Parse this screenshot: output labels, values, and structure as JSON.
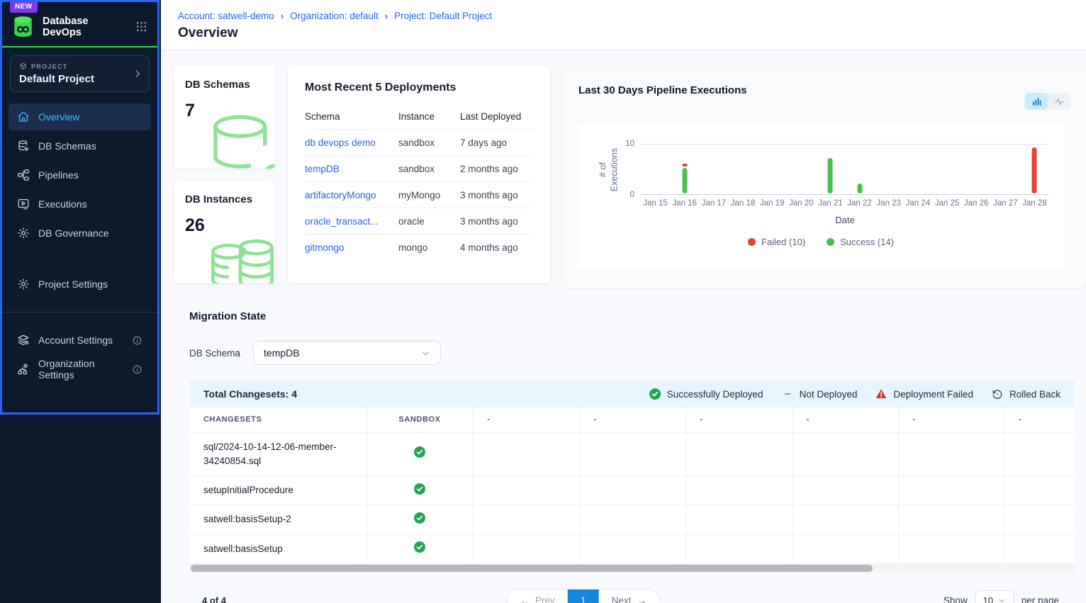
{
  "colors": {
    "brand_green": "#3ed24b",
    "link_blue": "#2563eb",
    "active_nav": "#3cbdf6",
    "success_green": "#23a455",
    "failed_red": "#dc2f26",
    "pagination_blue": "#1486dc"
  },
  "sidebar": {
    "new_badge": "NEW",
    "app_title": "Database DevOps",
    "project_label": "PROJECT",
    "project_name": "Default Project",
    "nav": [
      {
        "label": "Overview",
        "icon": "home-icon",
        "active": true
      },
      {
        "label": "DB Schemas",
        "icon": "database-icon",
        "active": false
      },
      {
        "label": "Pipelines",
        "icon": "pipelines-icon",
        "active": false
      },
      {
        "label": "Executions",
        "icon": "executions-icon",
        "active": false
      },
      {
        "label": "DB Governance",
        "icon": "gear-icon",
        "active": false
      }
    ],
    "settings_nav": [
      {
        "label": "Project Settings",
        "icon": "gear-icon",
        "info": false
      }
    ],
    "account_nav": [
      {
        "label": "Account Settings",
        "icon": "account-layers-icon",
        "info": true
      },
      {
        "label": "Organization Settings",
        "icon": "org-icon",
        "info": true
      }
    ]
  },
  "breadcrumb": {
    "items": [
      "Account: satwell-demo",
      "Organization: default",
      "Project: Default Project"
    ]
  },
  "page_title": "Overview",
  "stats": [
    {
      "label": "DB Schemas",
      "value": "7",
      "icon": "db-single-icon"
    },
    {
      "label": "DB Instances",
      "value": "26",
      "icon": "db-stack-icon"
    }
  ],
  "deployments": {
    "title": "Most Recent 5 Deployments",
    "columns": [
      "Schema",
      "Instance",
      "Last Deployed"
    ],
    "rows": [
      [
        "db devops demo",
        "sandbox",
        "7 days ago"
      ],
      [
        "tempDB",
        "sandbox",
        "2 months ago"
      ],
      [
        "artifactoryMongo",
        "myMongo",
        "3 months ago"
      ],
      [
        "oracle_transact...",
        "oracle",
        "3 months ago"
      ],
      [
        "gitmongo",
        "mongo",
        "4 months ago"
      ]
    ]
  },
  "chart_data": {
    "type": "bar",
    "title": "Last 30 Days Pipeline Executions",
    "xlabel": "Date",
    "ylabel": "# of Executions",
    "ylim": [
      0,
      10
    ],
    "grid": false,
    "legend_position": "bottom",
    "categories": [
      "Jan 15",
      "Jan 16",
      "Jan 17",
      "Jan 18",
      "Jan 19",
      "Jan 20",
      "Jan 21",
      "Jan 22",
      "Jan 23",
      "Jan 24",
      "Jan 25",
      "Jan 26",
      "Jan 27",
      "Jan 28"
    ],
    "series": [
      {
        "name": "Success",
        "color": "#4ac04e",
        "values": [
          0,
          5,
          0,
          0,
          0,
          0,
          7,
          2,
          0,
          0,
          0,
          0,
          0,
          0
        ]
      },
      {
        "name": "Failed",
        "color": "#e2413a",
        "values": [
          0,
          1,
          0,
          0,
          0,
          0,
          0,
          0,
          0,
          0,
          0,
          0,
          0,
          9
        ]
      }
    ],
    "legend": [
      {
        "label": "Failed (10)",
        "color": "#e2413a"
      },
      {
        "label": "Success (14)",
        "color": "#4ac04e"
      }
    ]
  },
  "migration": {
    "heading": "Migration State",
    "schema_label": "DB Schema",
    "schema_value": "tempDB"
  },
  "changesets": {
    "total_label": "Total Changesets: 4",
    "legend": [
      {
        "icon": "success-check-icon",
        "label": "Successfully Deployed"
      },
      {
        "icon": "dash-icon",
        "label": "Not Deployed"
      },
      {
        "icon": "warning-triangle-icon",
        "label": "Deployment Failed"
      },
      {
        "icon": "rollback-icon",
        "label": "Rolled Back"
      }
    ],
    "columns": [
      "CHANGESETS",
      "SANDBOX",
      "-",
      "-",
      "-",
      "-",
      "-",
      "-"
    ],
    "rows": [
      {
        "name": "sql/2024-10-14-12-06-member-34240854.sql",
        "sandbox": "success"
      },
      {
        "name": "setupInitialProcedure",
        "sandbox": "success"
      },
      {
        "name": "satwell:basisSetup-2",
        "sandbox": "success"
      },
      {
        "name": "satwell:basisSetup",
        "sandbox": "success"
      }
    ]
  },
  "pagination": {
    "summary": "4 of 4",
    "prev": "Prev",
    "current_page": "1",
    "next": "Next",
    "show_label": "Show",
    "page_size": "10",
    "per_page_label": "per page"
  }
}
